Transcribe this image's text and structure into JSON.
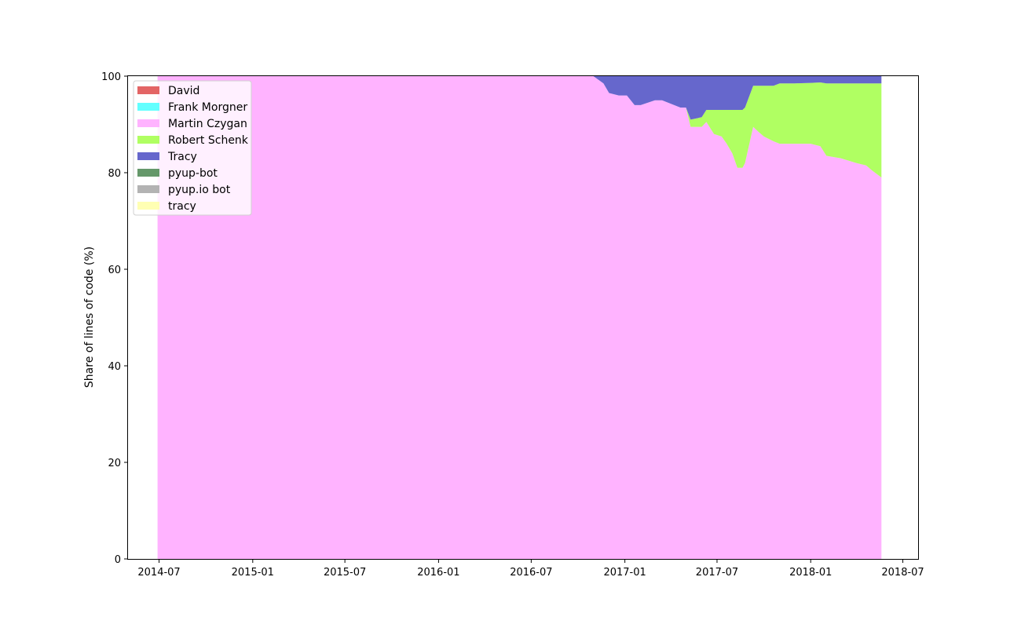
{
  "chart_data": {
    "type": "area",
    "title": "",
    "xlabel": "",
    "ylabel": "Share of lines of code (%)",
    "ylim": [
      0,
      100
    ],
    "xlim": [
      "2014-05-01",
      "2018-07-31"
    ],
    "x_ticks": [
      "2014-07",
      "2015-01",
      "2015-07",
      "2016-01",
      "2016-07",
      "2017-01",
      "2017-07",
      "2018-01",
      "2018-07"
    ],
    "y_ticks": [
      0,
      20,
      40,
      60,
      80,
      100
    ],
    "legend_position": "upper-left",
    "stacked": true,
    "x": [
      "2014-06-28",
      "2016-10-31",
      "2016-11-20",
      "2016-12-01",
      "2016-12-20",
      "2017-01-05",
      "2017-01-20",
      "2017-02-01",
      "2017-03-01",
      "2017-03-15",
      "2017-04-20",
      "2017-05-01",
      "2017-05-10",
      "2017-06-01",
      "2017-06-10",
      "2017-06-25",
      "2017-07-10",
      "2017-07-20",
      "2017-07-31",
      "2017-08-10",
      "2017-08-20",
      "2017-08-25",
      "2017-09-10",
      "2017-09-20",
      "2017-10-01",
      "2017-10-20",
      "2017-11-01",
      "2017-12-01",
      "2018-01-01",
      "2018-01-20",
      "2018-02-01",
      "2018-03-01",
      "2018-04-01",
      "2018-04-20",
      "2018-05-01",
      "2018-05-20"
    ],
    "series": [
      {
        "name": "David",
        "color": "#e36565",
        "values": [
          0,
          0,
          0,
          0,
          0,
          0,
          0,
          0,
          0,
          0,
          0,
          0,
          0,
          0,
          0,
          0,
          0,
          0,
          0,
          0,
          0,
          0,
          0,
          0,
          0,
          0,
          0,
          0,
          0,
          0,
          0,
          0,
          0,
          0,
          0,
          0
        ]
      },
      {
        "name": "Frank Morgner",
        "color": "#62ffff",
        "values": [
          0,
          0,
          0,
          0,
          0,
          0,
          0,
          0,
          0,
          0,
          0,
          0,
          0,
          0,
          0,
          0,
          0,
          0,
          0,
          0,
          0,
          0,
          0,
          0,
          0,
          0,
          0,
          0,
          0,
          0,
          0,
          0,
          0,
          0,
          0,
          0
        ]
      },
      {
        "name": "Martin Czygan",
        "color": "#ffb3ff",
        "values": [
          100,
          100,
          98.5,
          96.5,
          96,
          96,
          94,
          94,
          95,
          95,
          93.5,
          93.5,
          89.5,
          89.5,
          90.5,
          88,
          87.5,
          86,
          84,
          81,
          81,
          82,
          89.5,
          88.5,
          87.5,
          86.5,
          86,
          86,
          86,
          85.5,
          83.5,
          83,
          82,
          81.5,
          80.5,
          79
        ]
      },
      {
        "name": "Robert Schenk",
        "color": "#b0ff62",
        "values": [
          0,
          0,
          0,
          0,
          0,
          0,
          0,
          0,
          0,
          0,
          0,
          0,
          1.5,
          2,
          2.5,
          5,
          5.5,
          7,
          9,
          12,
          12,
          11.5,
          8.5,
          9.5,
          10.5,
          11.5,
          12.5,
          12.5,
          12.6,
          13.2,
          15,
          15.5,
          16.5,
          17,
          18,
          19.5
        ]
      },
      {
        "name": "Tracy",
        "color": "#6667cc",
        "values": [
          0,
          0,
          1.5,
          3.5,
          4,
          4,
          6,
          6,
          5,
          5,
          6.5,
          6.5,
          9,
          8.5,
          7,
          7,
          7,
          7,
          7,
          7,
          7,
          6.5,
          2,
          2,
          2,
          2,
          1.5,
          1.5,
          1.4,
          1.3,
          1.5,
          1.5,
          1.5,
          1.5,
          1.5,
          1.5
        ]
      },
      {
        "name": "pyup-bot",
        "color": "#65986a",
        "values": [
          0,
          0,
          0,
          0,
          0,
          0,
          0,
          0,
          0,
          0,
          0,
          0,
          0,
          0,
          0,
          0,
          0,
          0,
          0,
          0,
          0,
          0,
          0,
          0,
          0,
          0,
          0,
          0,
          0,
          0,
          0,
          0,
          0,
          0,
          0,
          0
        ]
      },
      {
        "name": "pyup.io bot",
        "color": "#b3b3b3",
        "values": [
          0,
          0,
          0,
          0,
          0,
          0,
          0,
          0,
          0,
          0,
          0,
          0,
          0,
          0,
          0,
          0,
          0,
          0,
          0,
          0,
          0,
          0,
          0,
          0,
          0,
          0,
          0,
          0,
          0,
          0,
          0,
          0,
          0,
          0,
          0,
          0
        ]
      },
      {
        "name": "tracy",
        "color": "#ffffb3",
        "values": [
          0,
          0,
          0,
          0,
          0,
          0,
          0,
          0,
          0,
          0,
          0,
          0,
          0,
          0,
          0,
          0,
          0,
          0,
          0,
          0,
          0,
          0,
          0,
          0,
          0,
          0,
          0,
          0,
          0,
          0,
          0,
          0,
          0,
          0,
          0,
          0
        ]
      }
    ]
  }
}
